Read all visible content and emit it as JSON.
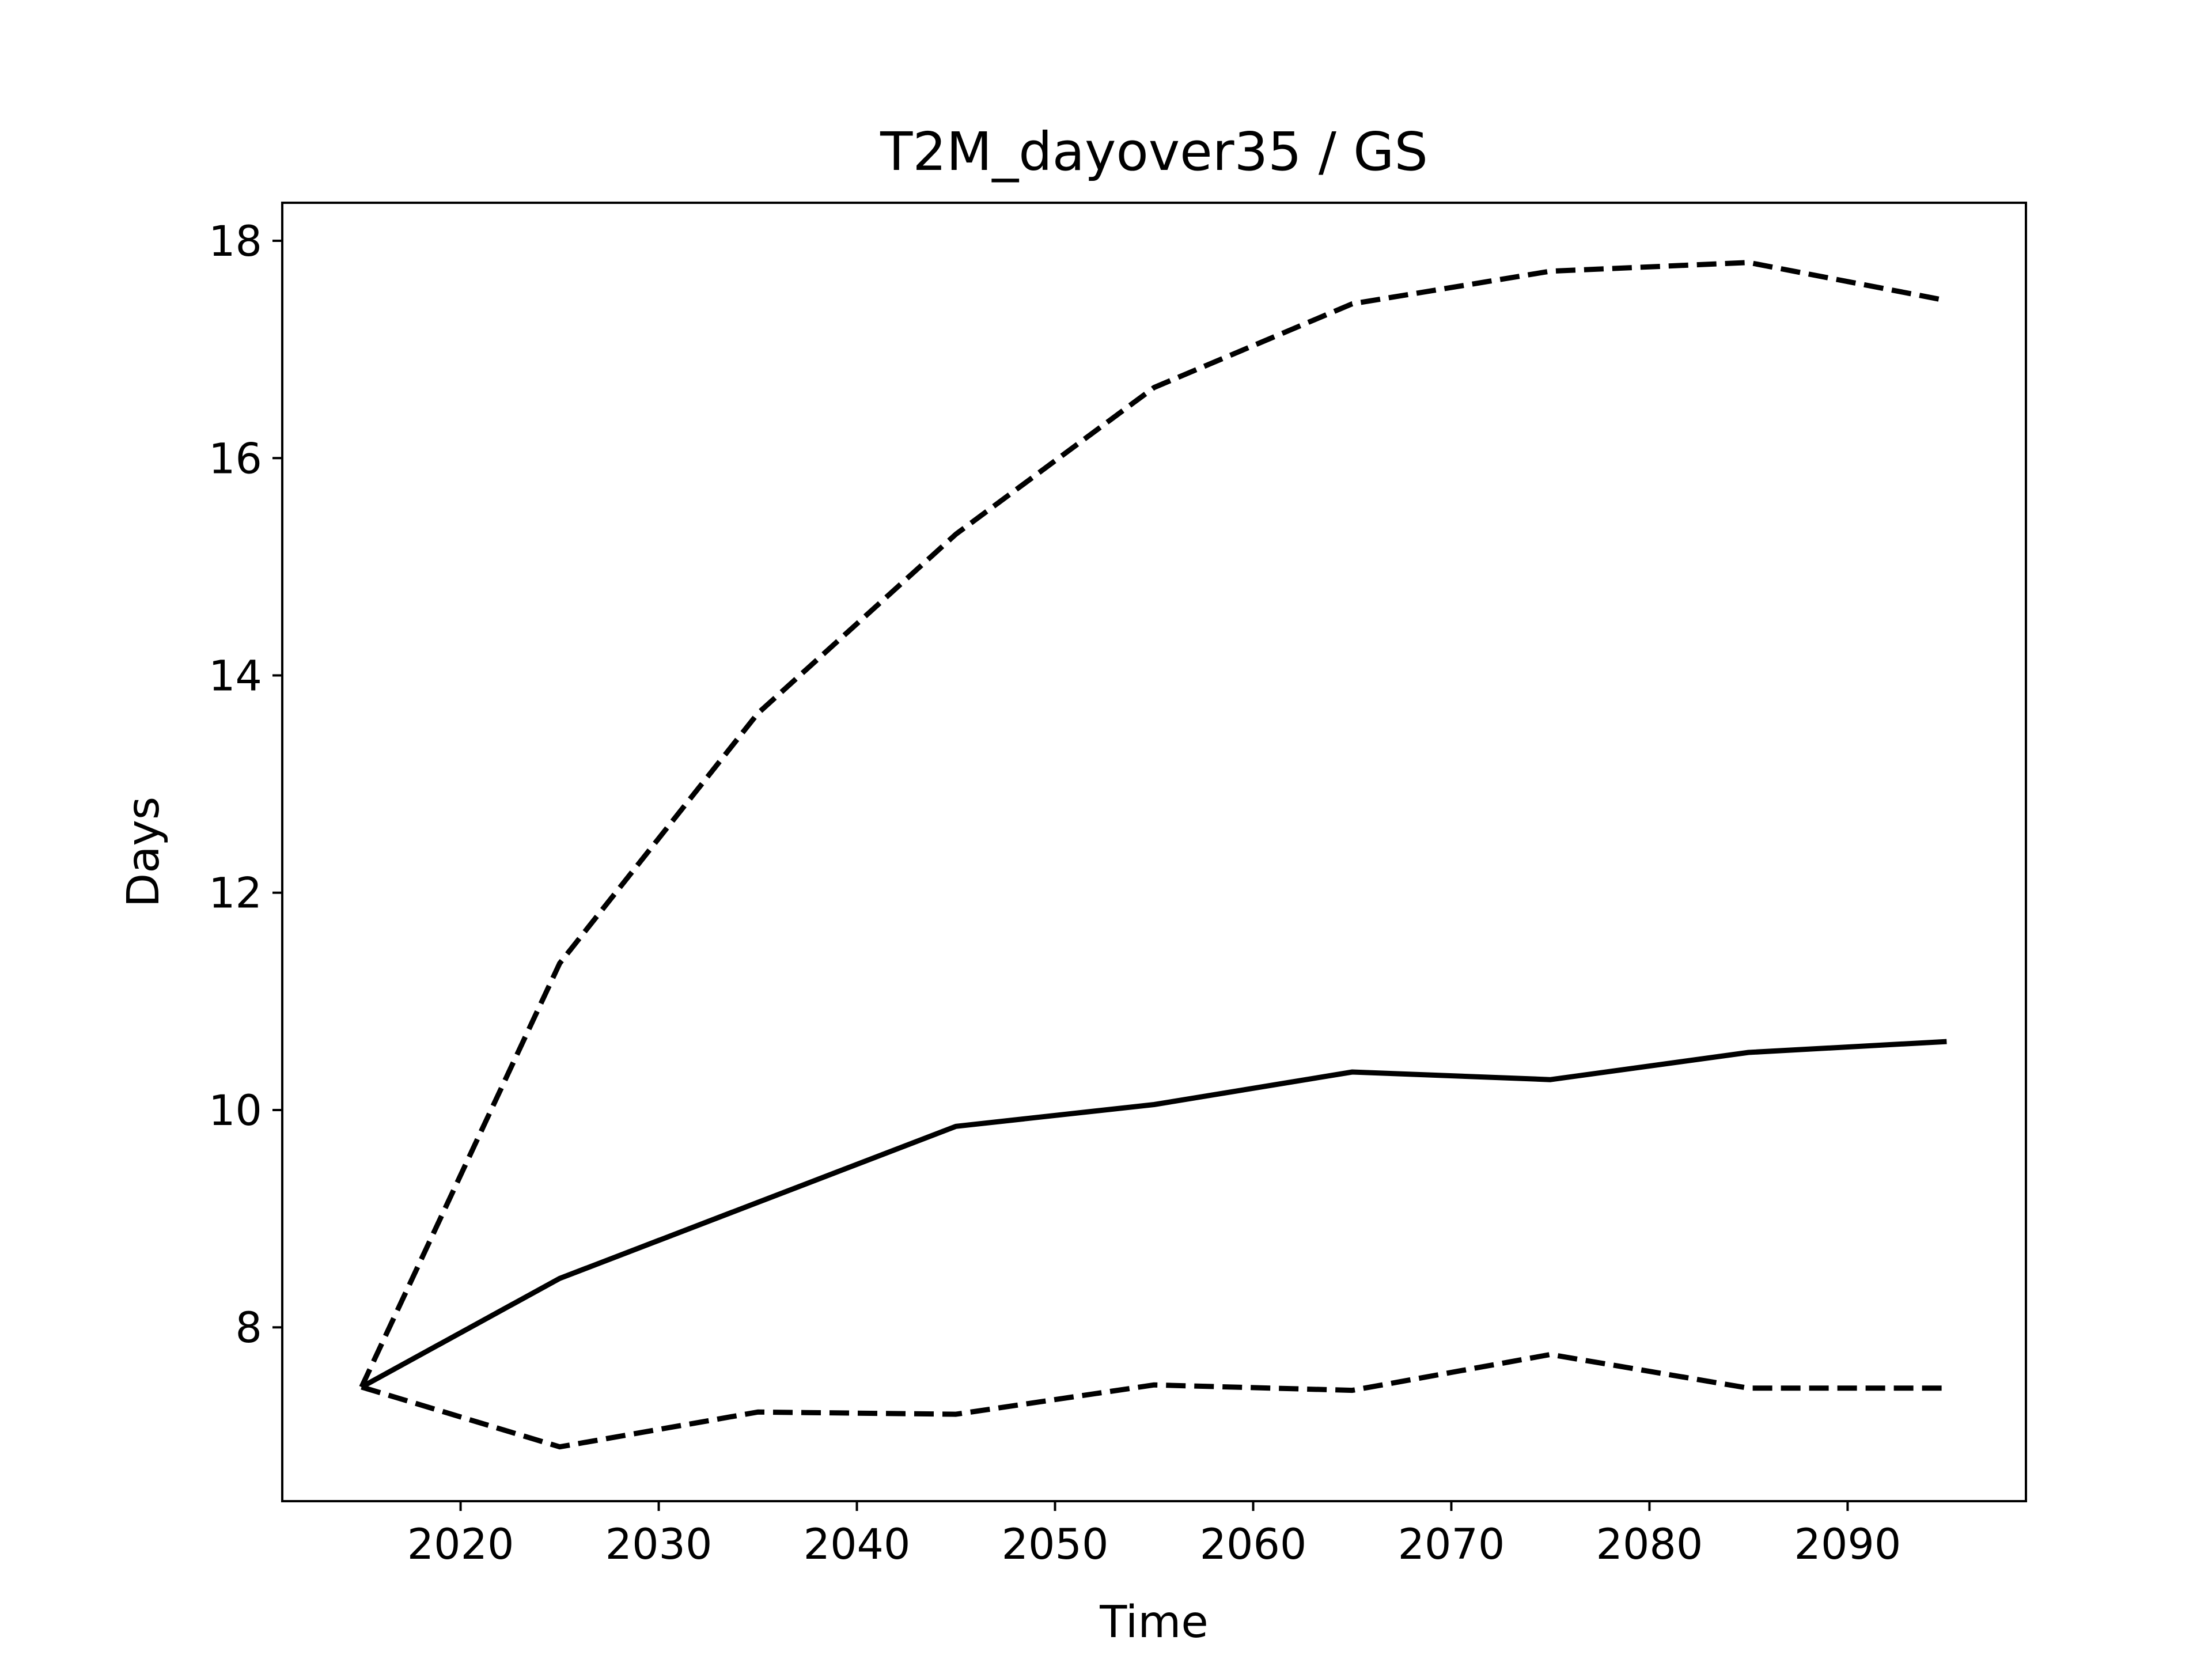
{
  "chart_data": {
    "type": "line",
    "title": "T2M_dayover35 / GS",
    "xlabel": "Time",
    "ylabel": "Days",
    "xlim": [
      2011,
      2099
    ],
    "ylim": [
      6.4,
      18.35
    ],
    "xticks": [
      2020,
      2030,
      2040,
      2050,
      2060,
      2070,
      2080,
      2090
    ],
    "yticks": [
      8,
      10,
      12,
      14,
      16,
      18
    ],
    "grid": false,
    "legend": "none",
    "x": [
      2015,
      2025,
      2035,
      2045,
      2055,
      2065,
      2075,
      2085,
      2095
    ],
    "series": [
      {
        "style": "solid",
        "color": "#000000",
        "values": [
          7.45,
          8.45,
          9.15,
          9.85,
          10.05,
          10.35,
          10.28,
          10.53,
          10.63
        ]
      },
      {
        "style": "dashed",
        "color": "#000000",
        "values": [
          7.45,
          11.35,
          13.65,
          15.3,
          16.65,
          17.42,
          17.72,
          17.8,
          17.45
        ]
      },
      {
        "style": "dashed",
        "color": "#000000",
        "values": [
          7.45,
          6.9,
          7.22,
          7.2,
          7.47,
          7.42,
          7.75,
          7.44,
          7.44
        ]
      }
    ]
  }
}
